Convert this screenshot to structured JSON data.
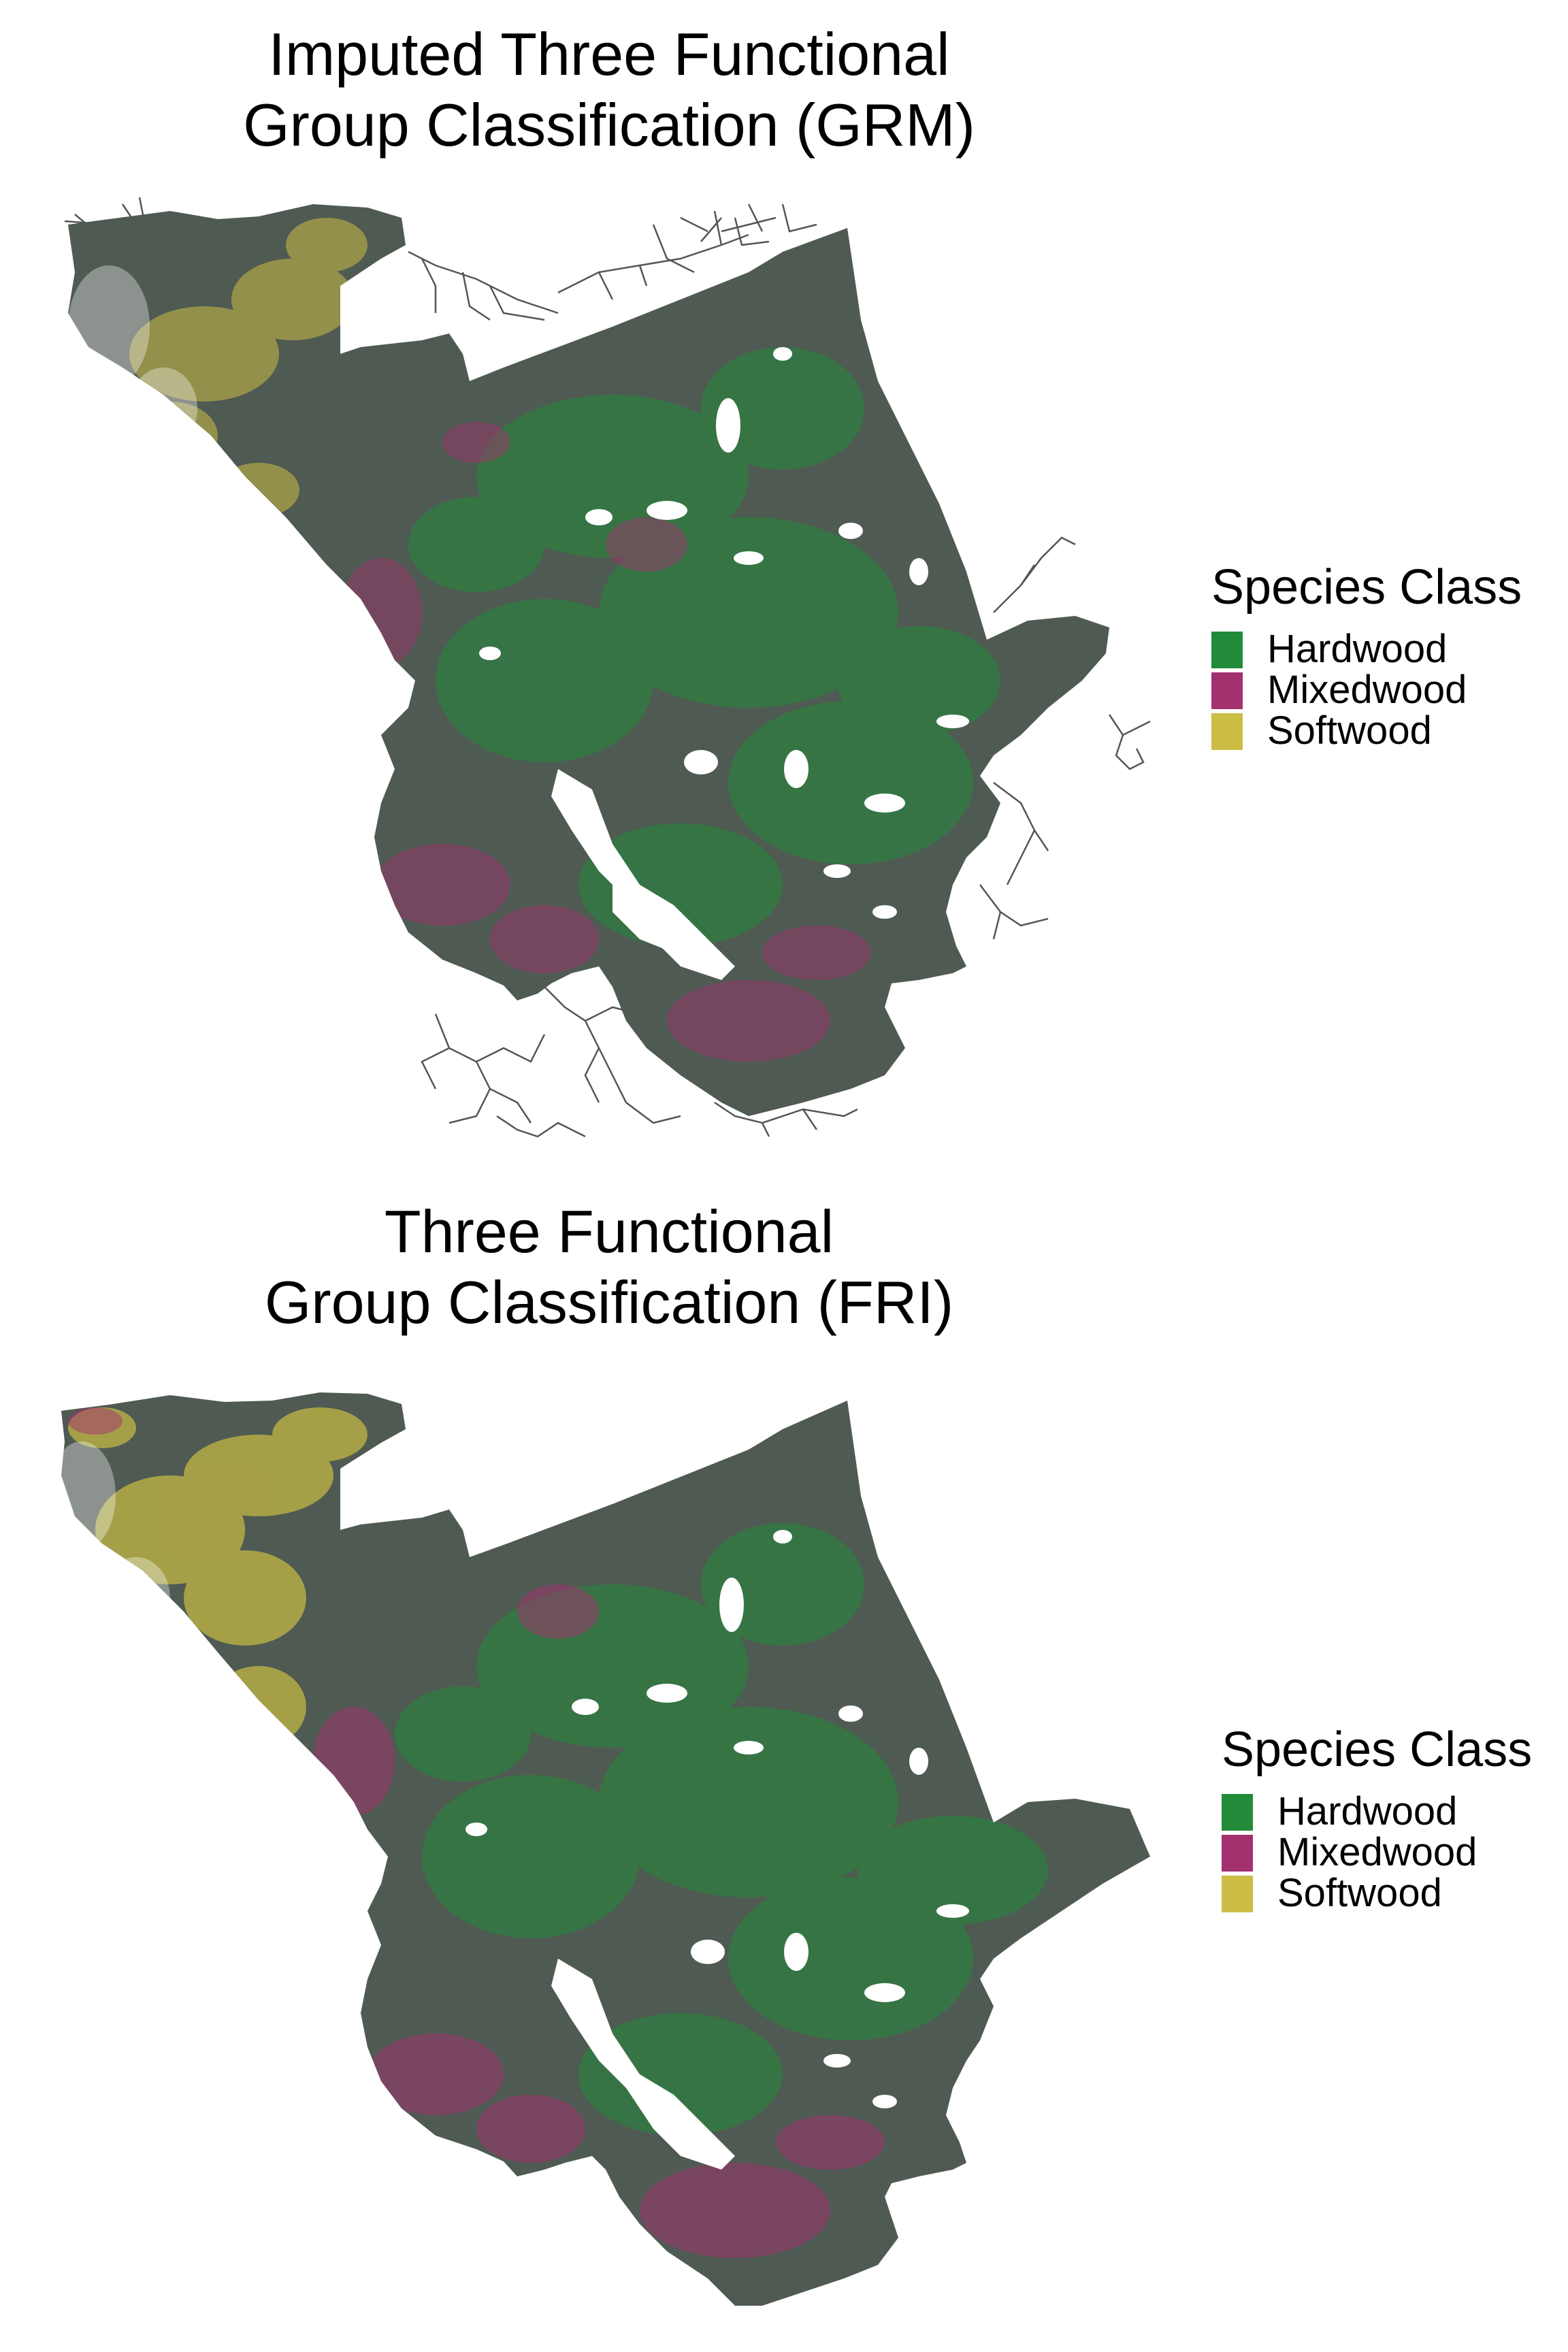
{
  "maps": [
    {
      "title_line1": "Imputed Three Functional",
      "title_line2": "Group Classification (GRM)",
      "show_roads": true,
      "legend": {
        "title": "Species Class",
        "items": [
          {
            "label": "Hardwood",
            "color": "#228b3a"
          },
          {
            "label": "Mixedwood",
            "color": "#a3306f"
          },
          {
            "label": "Softwood",
            "color": "#cbbd45"
          }
        ]
      }
    },
    {
      "title_line1": "Three Functional",
      "title_line2": "Group Classification (FRI)",
      "show_roads": false,
      "legend": {
        "title": "Species Class",
        "items": [
          {
            "label": "Hardwood",
            "color": "#228b3a"
          },
          {
            "label": "Mixedwood",
            "color": "#a3306f"
          },
          {
            "label": "Softwood",
            "color": "#cbbd45"
          }
        ]
      }
    }
  ],
  "colors": {
    "background_fill": "#4f5a52",
    "hardwood": "#228b3a",
    "mixedwood": "#a3306f",
    "softwood": "#cbbd45",
    "roads": "#555555"
  }
}
